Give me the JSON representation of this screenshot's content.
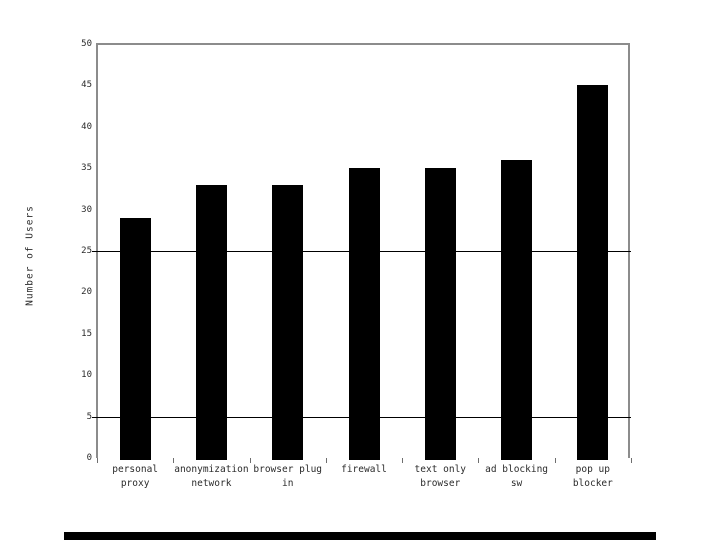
{
  "chart_data": {
    "type": "bar",
    "title": "",
    "ylabel": "Number of Users",
    "xlabel": "",
    "categories": [
      "personal proxy",
      "anonymization network",
      "browser plug in",
      "firewall",
      "text only browser",
      "ad blocking sw",
      "pop up blocker"
    ],
    "category_lines": [
      [
        "personal",
        "proxy"
      ],
      [
        "anonymization",
        "network"
      ],
      [
        "browser plug",
        "in"
      ],
      [
        "firewall",
        ""
      ],
      [
        "text only",
        "browser"
      ],
      [
        "ad blocking",
        "sw"
      ],
      [
        "pop up",
        "blocker"
      ]
    ],
    "values": [
      29,
      33,
      33,
      35,
      35,
      36,
      45
    ],
    "ylim": [
      0,
      50
    ],
    "yticks": [
      0,
      5,
      10,
      15,
      20,
      25,
      30,
      35,
      40,
      45,
      50
    ],
    "gridlines_at": [
      5,
      25
    ],
    "grid_on": false,
    "legend_position": "none",
    "bar_color": "#000000",
    "axis_color": "#8c8c8c",
    "gridline_color": "#000000",
    "text_color": "#2b2b2b",
    "background_color": "#ffffff",
    "bottom_decor_color": "#000000"
  }
}
